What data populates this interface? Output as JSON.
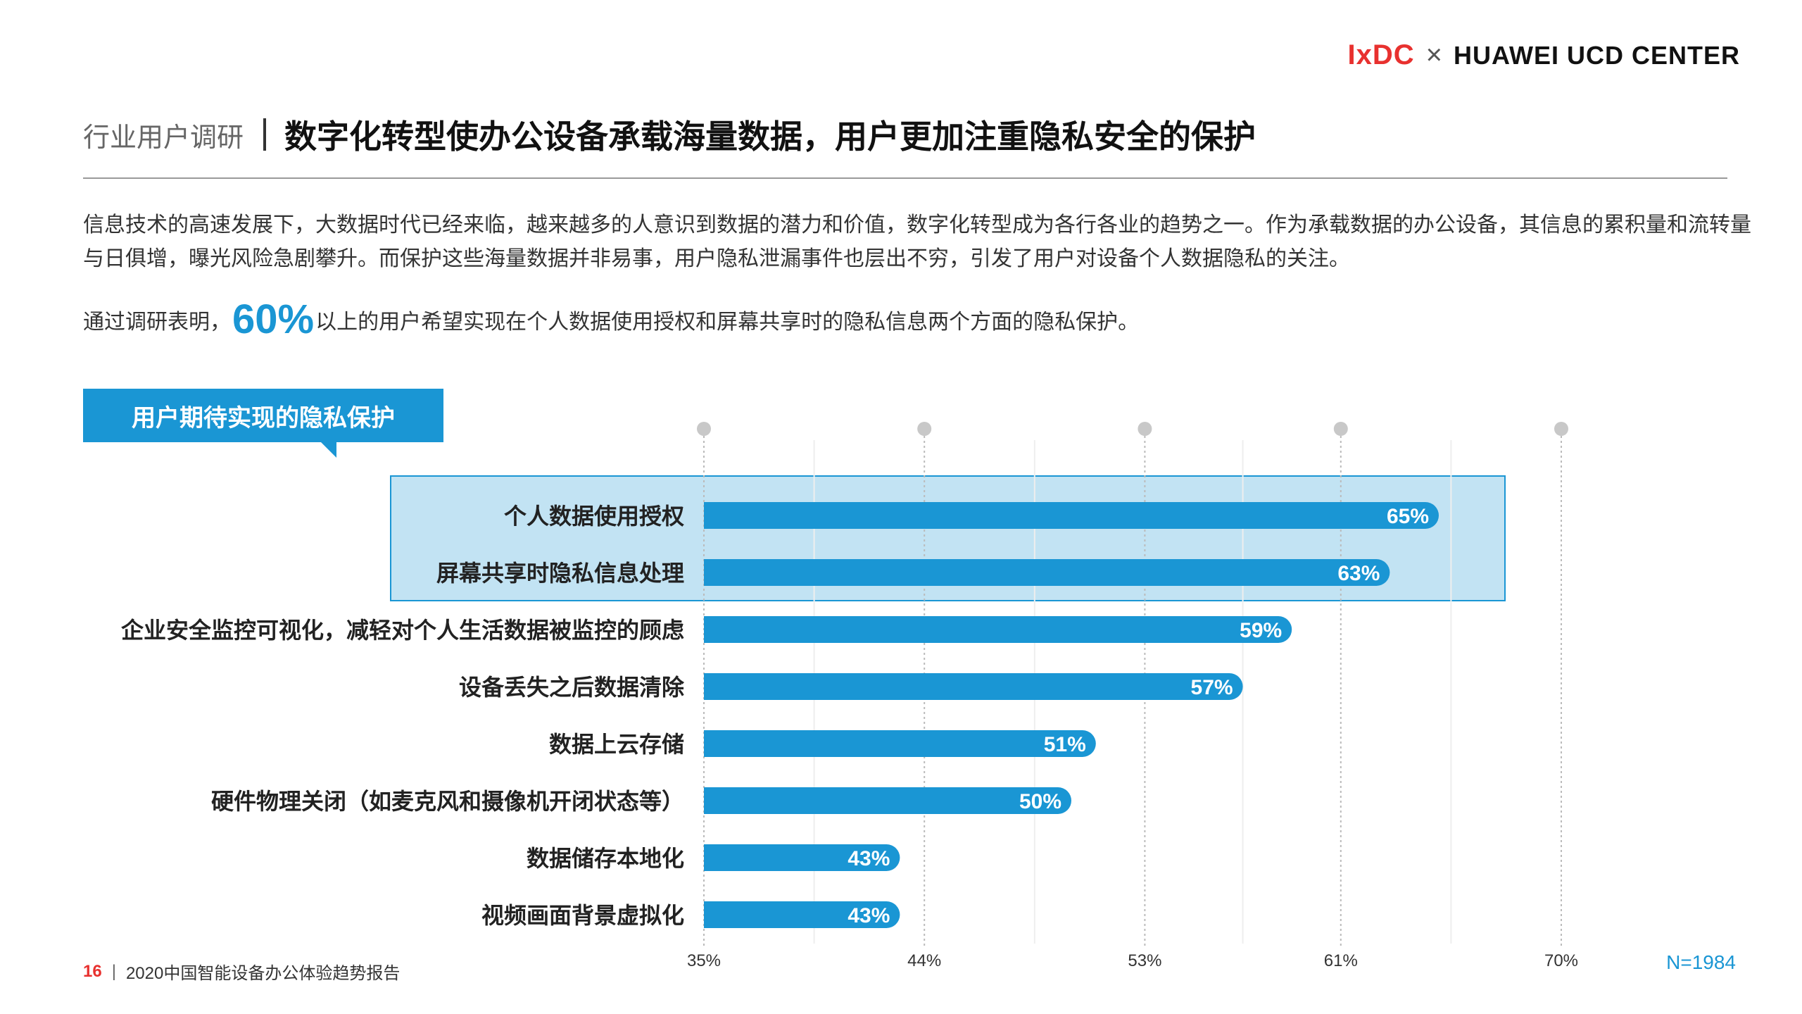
{
  "logo": {
    "ixdc": "IxDC",
    "times": "×",
    "partner": "HUAWEI UCD CENTER"
  },
  "header": {
    "section": "行业用户调研",
    "title": "数字化转型使办公设备承载海量数据，用户更加注重隐私安全的保护"
  },
  "intro": {
    "paragraph": "信息技术的高速发展下，大数据时代已经来临，越来越多的人意识到数据的潜力和价值，数字化转型成为各行各业的趋势之一。作为承载数据的办公设备，其信息的累积量和流转量与日俱增，曝光风险急剧攀升。而保护这些海量数据并非易事，用户隐私泄漏事件也层出不穷，引发了用户对设备个人数据隐私的关注。",
    "finding_prefix": "通过调研表明，",
    "finding_highlight": "60%",
    "finding_suffix": "以上的用户希望实现在个人数据使用授权和屏幕共享时的隐私信息两个方面的隐私保护。"
  },
  "tag": {
    "label": "用户期待实现的隐私保护"
  },
  "colors": {
    "accent": "#1a96d4",
    "highlight_fill": "#c2e3f3",
    "highlight_border": "#1a96d4",
    "brand_red": "#e8312f",
    "grid": "#bbbbbb"
  },
  "chart_data": {
    "type": "bar",
    "orientation": "horizontal",
    "categories": [
      "个人数据使用授权",
      "屏幕共享时隐私信息处理",
      "企业安全监控可视化，减轻对个人生活数据被监控的顾虑",
      "设备丢失之后数据清除",
      "数据上云存储",
      "硬件物理关闭（如麦克风和摄像机开闭状态等）",
      "数据储存本地化",
      "视频画面背景虚拟化"
    ],
    "values": [
      65,
      63,
      59,
      57,
      51,
      50,
      43,
      43
    ],
    "value_labels": [
      "65%",
      "63%",
      "59%",
      "57%",
      "51%",
      "50%",
      "43%",
      "43%"
    ],
    "x_ticks": [
      35,
      44,
      53,
      61,
      70
    ],
    "x_tick_labels": [
      "35%",
      "44%",
      "53%",
      "61%",
      "70%"
    ],
    "xlim": [
      35,
      70
    ],
    "highlighted_categories": [
      0,
      1
    ],
    "sample_note": "N=1984"
  },
  "footer": {
    "page": "16",
    "separator": "|",
    "report": "2020中国智能设备办公体验趋势报告"
  }
}
